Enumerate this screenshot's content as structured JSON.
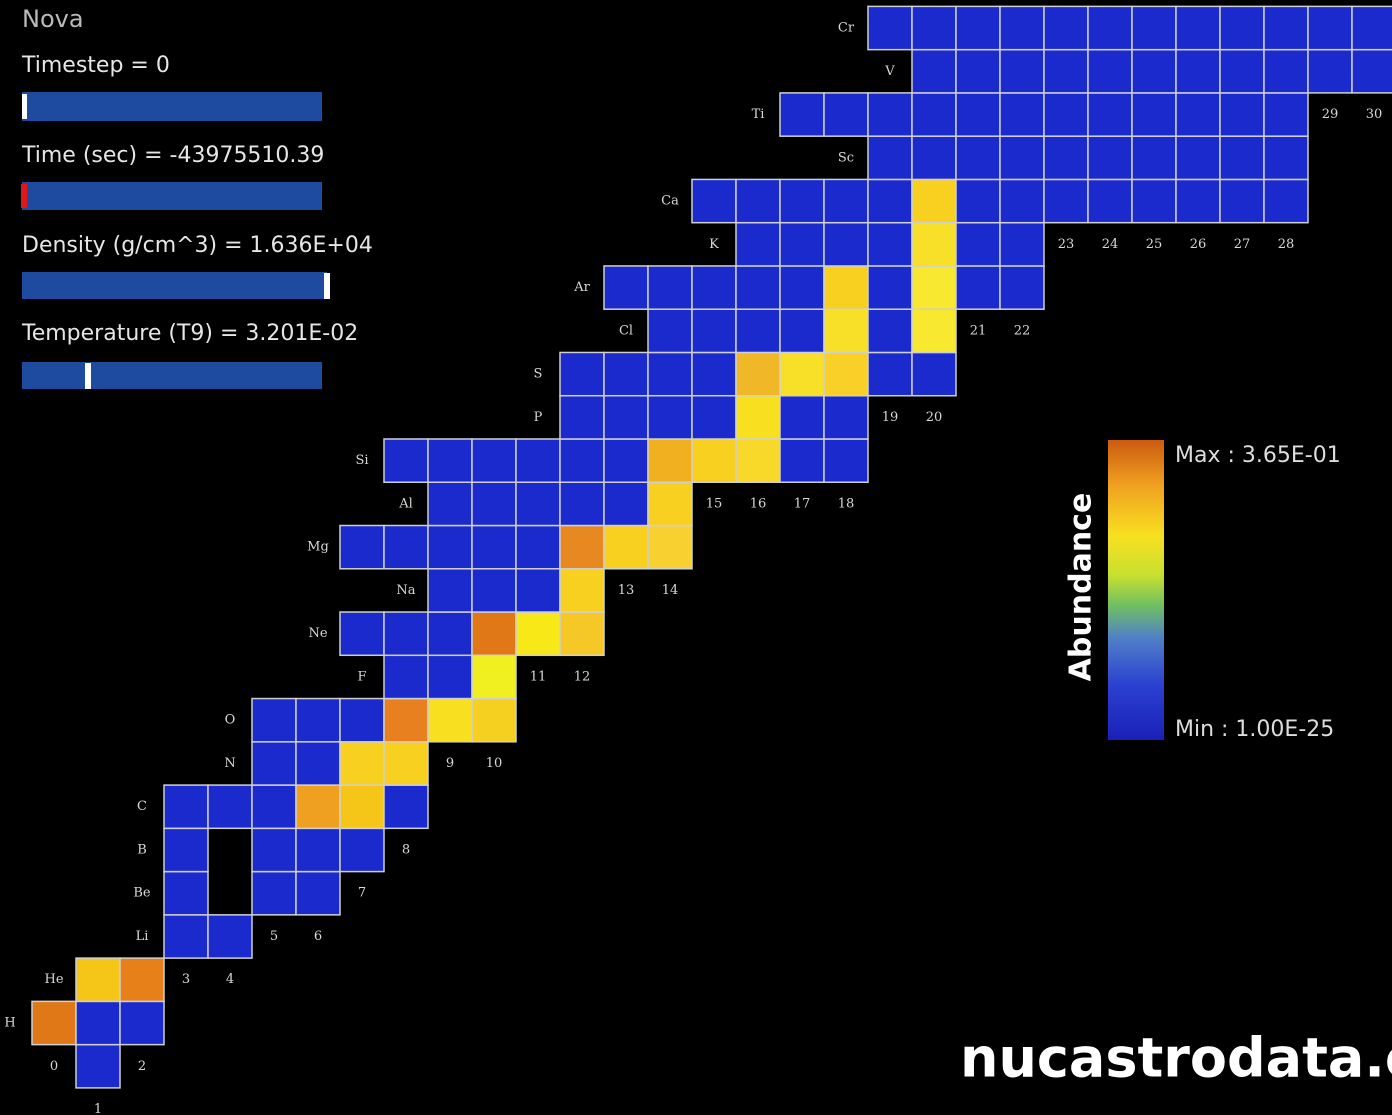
{
  "title": "Nova",
  "controls": [
    {
      "label": "Timestep = 0"
    },
    {
      "label": "Time (sec) = -43975510.39"
    },
    {
      "label": "Density (g/cm^3) = 1.636E+04"
    },
    {
      "label": "Temperature (T9) = 3.201E-02"
    }
  ],
  "nuclide_chart": {
    "rows": [
      {
        "n_min": 1,
        "n_max": 1
      },
      {
        "element": "H",
        "n_min": 0,
        "n_max": 2,
        "colors": {
          "0": "#e07818"
        }
      },
      {
        "element": "He",
        "n_min": 1,
        "n_max": 2,
        "colors": {
          "1": "#f5c518",
          "2": "#e8801a"
        }
      },
      {
        "element": "Li",
        "n_min": 3,
        "n_max": 4
      },
      {
        "element": "Be",
        "n_min": 3,
        "n_max": 6,
        "missing": [
          4
        ]
      },
      {
        "element": "B",
        "n_min": 3,
        "n_max": 7,
        "missing": [
          4
        ]
      },
      {
        "element": "C",
        "n_min": 3,
        "n_max": 8,
        "colors": {
          "6": "#f0a020",
          "7": "#f5c518"
        }
      },
      {
        "element": "N",
        "n_min": 5,
        "n_max": 8,
        "colors": {
          "7": "#f8d020",
          "8": "#f8d020"
        }
      },
      {
        "element": "O",
        "n_min": 5,
        "n_max": 10,
        "colors": {
          "8": "#e88020",
          "9": "#f8e020",
          "10": "#f5d020"
        }
      },
      {
        "element": "F",
        "n_min": 8,
        "n_max": 10,
        "colors": {
          "10": "#f0f020"
        }
      },
      {
        "element": "Ne",
        "n_min": 7,
        "n_max": 12,
        "colors": {
          "10": "#e07818",
          "11": "#f8e818",
          "12": "#f5c828"
        }
      },
      {
        "element": "Na",
        "n_min": 9,
        "n_max": 12,
        "colors": {
          "12": "#f8d020"
        }
      },
      {
        "element": "Mg",
        "n_min": 7,
        "n_max": 14,
        "colors": {
          "12": "#e88820",
          "13": "#f8d020",
          "14": "#f8d030"
        }
      },
      {
        "element": "Al",
        "n_min": 9,
        "n_max": 14,
        "colors": {
          "14": "#f8d020"
        }
      },
      {
        "element": "Si",
        "n_min": 8,
        "n_max": 18,
        "colors": {
          "14": "#f0b020",
          "15": "#f8d020",
          "16": "#f8d828"
        }
      },
      {
        "element": "P",
        "n_min": 12,
        "n_max": 18,
        "colors": {
          "16": "#f8e020"
        }
      },
      {
        "element": "S",
        "n_min": 12,
        "n_max": 20,
        "colors": {
          "16": "#f0b828",
          "17": "#f8e028",
          "18": "#f8d028"
        }
      },
      {
        "element": "Cl",
        "n_min": 14,
        "n_max": 20,
        "colors": {
          "18": "#f8e028",
          "20": "#f8e830"
        }
      },
      {
        "element": "Ar",
        "n_min": 13,
        "n_max": 22,
        "colors": {
          "18": "#f8d020",
          "20": "#f8e830"
        }
      },
      {
        "element": "K",
        "n_min": 16,
        "n_max": 22,
        "colors": {
          "20": "#f8e028"
        }
      },
      {
        "element": "Ca",
        "n_min": 15,
        "n_max": 28,
        "colors": {
          "20": "#f8d020"
        }
      },
      {
        "element": "Sc",
        "n_min": 19,
        "n_max": 28
      },
      {
        "element": "Ti",
        "n_min": 17,
        "n_max": 28
      },
      {
        "element": "V",
        "n_min": 20,
        "n_max": 30
      },
      {
        "element": "Cr",
        "n_min": 19,
        "n_max": 30
      }
    ],
    "base_color": "#1a2acc",
    "n_labels": [
      0,
      1,
      2,
      3,
      4,
      5,
      6,
      7,
      8,
      9,
      10,
      11,
      12,
      13,
      14,
      15,
      16,
      17,
      18,
      19,
      20,
      21,
      22,
      23,
      24,
      25,
      26,
      27,
      28,
      29,
      30
    ]
  },
  "legend": {
    "axis_title": "Abundance",
    "max_label": "Max : 3.65E-01",
    "min_label": "Min : 1.00E-25"
  },
  "watermark": "nucastrodata.o"
}
